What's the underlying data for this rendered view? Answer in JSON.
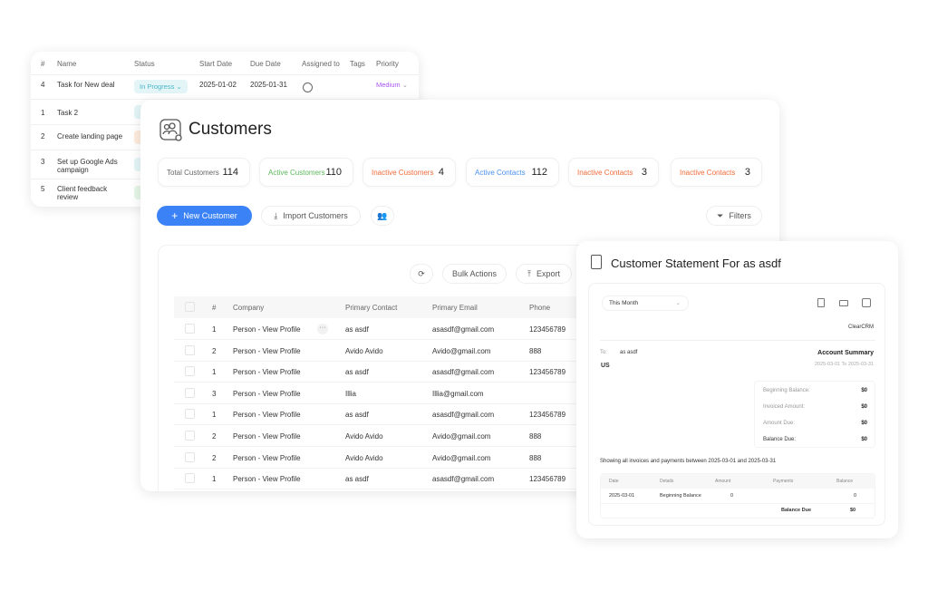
{
  "tasks": {
    "headers": [
      "#",
      "Name",
      "Status",
      "Start Date",
      "Due Date",
      "Assigned to",
      "Tags",
      "Priority"
    ],
    "rows": [
      {
        "num": "4",
        "name": "Task for New deal",
        "status": "In Progress",
        "start": "2025-01-02",
        "due": "2025-01-31",
        "priority": "Medium"
      },
      {
        "num": "1",
        "name": "Task 2"
      },
      {
        "num": "2",
        "name": "Create landing page"
      },
      {
        "num": "3",
        "name": "Set up Google Ads campaign"
      },
      {
        "num": "5",
        "name": "Client feedback review"
      }
    ]
  },
  "customers": {
    "title": "Customers",
    "stats": [
      {
        "label": "Total Customers",
        "value": "114",
        "color": "#666666"
      },
      {
        "label": "Active Customers",
        "value": "110",
        "color": "#5cb85c"
      },
      {
        "label": "Inactive Customers",
        "value": "4",
        "color": "#f26b3a"
      },
      {
        "label": "Active Contacts",
        "value": "112",
        "color": "#4a90f0"
      },
      {
        "label": "Inactive Contacts",
        "value": "3",
        "color": "#f26b3a"
      },
      {
        "label": "Inactive Contacts",
        "value": "3",
        "color": "#f26b3a"
      }
    ],
    "new_customer": "New Customer",
    "import": "Import Customers",
    "filters": "Filters",
    "bulk_actions": "Bulk Actions",
    "export": "Export",
    "table_headers": [
      "#",
      "Company",
      "Primary Contact",
      "Primary Email",
      "Phone"
    ],
    "rows": [
      [
        "1",
        "Person - View Profile",
        "as asdf",
        "asasdf@gmail.com",
        "123456789"
      ],
      [
        "2",
        "Person - View Profile",
        "Avido Avido",
        "Avido@gmail.com",
        "888"
      ],
      [
        "1",
        "Person - View Profile",
        "as asdf",
        "asasdf@gmail.com",
        "123456789"
      ],
      [
        "3",
        "Person - View Profile",
        "Illia",
        "Illia@gmail.com",
        ""
      ],
      [
        "1",
        "Person - View Profile",
        "as asdf",
        "asasdf@gmail.com",
        "123456789"
      ],
      [
        "2",
        "Person - View Profile",
        "Avido Avido",
        "Avido@gmail.com",
        "888"
      ],
      [
        "2",
        "Person - View Profile",
        "Avido Avido",
        "Avido@gmail.com",
        "888"
      ],
      [
        "1",
        "Person - View Profile",
        "as asdf",
        "asasdf@gmail.com",
        "123456789"
      ]
    ],
    "accent": "#3b82f6"
  },
  "statement": {
    "title": "Customer Statement For as asdf",
    "period": "This Month",
    "company": "ClearCRM",
    "to_label": "To:",
    "to_name": "as asdf",
    "country": "US",
    "summary_title": "Account Summary",
    "summary_range": "2025-03-01 To 2025-03-31",
    "summary": [
      {
        "label": "Beginning Balance:",
        "value": "$0"
      },
      {
        "label": "Invoiced Amount:",
        "value": "$0"
      },
      {
        "label": "Amount Due:",
        "value": "$0"
      },
      {
        "label": "Balance Due:",
        "value": "$0"
      }
    ],
    "showing": "Showing all invoices and payments between 2025-03-01 and 2025-03-31",
    "headers": [
      "Date",
      "Details",
      "Amount",
      "Payments",
      "Balance"
    ],
    "row": [
      "2025-03-01",
      "Beginning Balance",
      "0",
      "",
      "0"
    ],
    "balance_due_label": "Balance Due",
    "balance_due_value": "$0"
  }
}
